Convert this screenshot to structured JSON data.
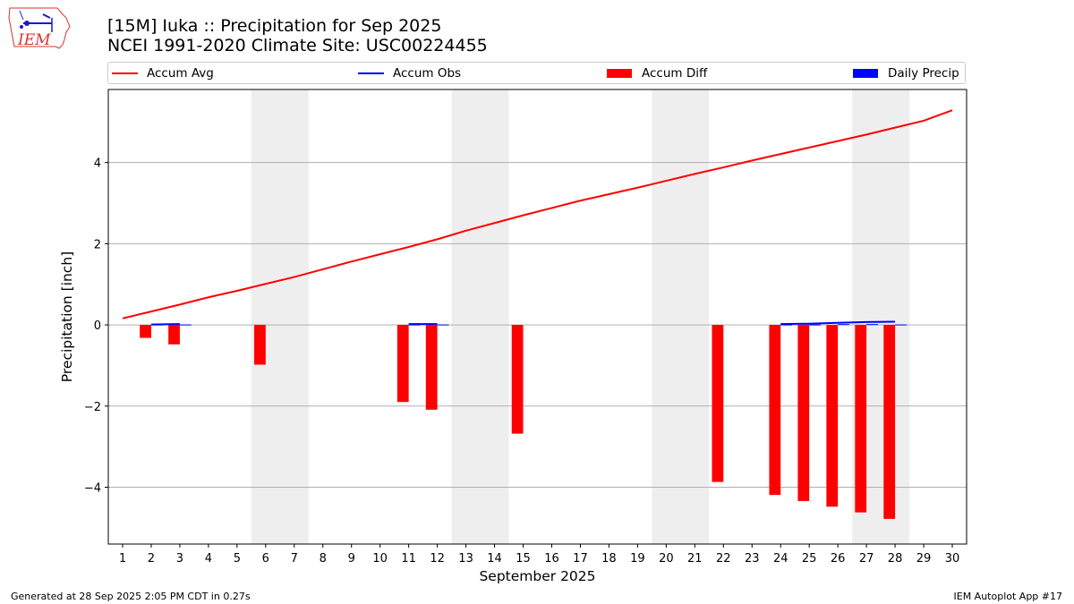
{
  "logo": {
    "text": "IEM",
    "icon": "iowa-weather-station-icon",
    "color": "#d9332e",
    "accent": "#1a1ac8"
  },
  "header": {
    "title": "[15M] Iuka :: Precipitation for Sep 2025",
    "subtitle": "NCEI 1991-2020 Climate Site: USC00224455"
  },
  "legend": {
    "placement": "top",
    "items": [
      {
        "label": "Accum Avg",
        "kind": "line",
        "color": "#ff0000"
      },
      {
        "label": "Accum Obs",
        "kind": "line",
        "color": "#0000ff"
      },
      {
        "label": "Accum Diff",
        "kind": "bar",
        "color": "#ff0000"
      },
      {
        "label": "Daily Precip",
        "kind": "bar",
        "color": "#0000ff"
      }
    ]
  },
  "footer": {
    "left": "Generated at 28 Sep 2025 2:05 PM CDT in 0.27s",
    "right": "IEM Autoplot App #17"
  },
  "chart_data": {
    "type": "bar",
    "xlabel": "September 2025",
    "ylabel": "Precipitation [inch]",
    "xlim": [
      0.5,
      30.5
    ],
    "ylim": [
      -5.4,
      5.8
    ],
    "x_ticks": [
      1,
      2,
      3,
      4,
      5,
      6,
      7,
      8,
      9,
      10,
      11,
      12,
      13,
      14,
      15,
      16,
      17,
      18,
      19,
      20,
      21,
      22,
      23,
      24,
      25,
      26,
      27,
      28,
      29,
      30
    ],
    "y_ticks": [
      -4,
      -2,
      0,
      2,
      4
    ],
    "y_tick_labels": [
      "−4",
      "−2",
      "0",
      "2",
      "4"
    ],
    "grid": "horizontal",
    "weekend_shading": [
      [
        5.5,
        7.5
      ],
      [
        12.5,
        14.5
      ],
      [
        19.5,
        21.5
      ],
      [
        26.5,
        28.5
      ]
    ],
    "accum_avg": {
      "x": [
        1,
        2,
        3,
        4,
        5,
        6,
        7,
        8,
        9,
        10,
        11,
        12,
        13,
        14,
        15,
        16,
        17,
        18,
        19,
        20,
        21,
        22,
        23,
        24,
        25,
        26,
        27,
        28,
        29,
        30
      ],
      "y": [
        0.16,
        0.33,
        0.5,
        0.68,
        0.84,
        1.01,
        1.18,
        1.37,
        1.56,
        1.74,
        1.92,
        2.11,
        2.32,
        2.51,
        2.7,
        2.88,
        3.06,
        3.22,
        3.38,
        3.55,
        3.72,
        3.88,
        4.05,
        4.21,
        4.37,
        4.53,
        4.69,
        4.86,
        5.03,
        5.29
      ]
    },
    "accum_obs": {
      "x": [
        2,
        3,
        11,
        12,
        24,
        25,
        26,
        27,
        28
      ],
      "y": [
        0.01,
        0.02,
        0.02,
        0.02,
        0.02,
        0.03,
        0.05,
        0.07,
        0.08
      ]
    },
    "accum_diff": {
      "x": [
        2,
        3,
        6,
        11,
        12,
        15,
        22,
        24,
        25,
        26,
        27,
        28
      ],
      "values": [
        -0.32,
        -0.48,
        -0.98,
        -1.9,
        -2.09,
        -2.68,
        -3.87,
        -4.19,
        -4.34,
        -4.48,
        -4.62,
        -4.78
      ]
    },
    "daily_precip": {
      "x": [
        2,
        3,
        11,
        12,
        24,
        25,
        26,
        27,
        28
      ],
      "values": [
        0.01,
        0.01,
        0.01,
        0.01,
        0.01,
        0.01,
        0.02,
        0.02,
        0.01
      ]
    }
  }
}
